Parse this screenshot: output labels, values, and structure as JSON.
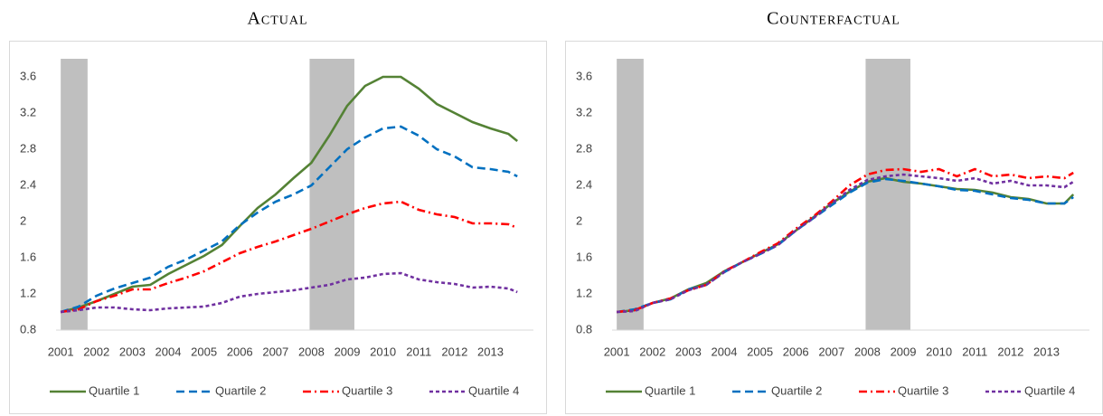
{
  "chart_data": [
    {
      "type": "line",
      "title": "Actual",
      "x": [
        2001,
        2001.5,
        2002,
        2002.5,
        2003,
        2003.5,
        2004,
        2004.5,
        2005,
        2005.5,
        2006,
        2006.5,
        2007,
        2007.5,
        2008,
        2008.5,
        2009,
        2009.5,
        2010,
        2010.5,
        2011,
        2011.5,
        2012,
        2012.5,
        2013,
        2013.5,
        2013.75
      ],
      "xlim": [
        2000.87,
        2014.2
      ],
      "xticks": [
        2001,
        2002,
        2003,
        2004,
        2005,
        2006,
        2007,
        2008,
        2009,
        2010,
        2011,
        2012,
        2013
      ],
      "ylim": [
        0.8,
        3.8
      ],
      "yticks": [
        0.8,
        1.2,
        1.6,
        2,
        2.4,
        2.8,
        3.2,
        3.6
      ],
      "recessions": [
        [
          2001,
          2001.75
        ],
        [
          2007.95,
          2009.2
        ]
      ],
      "recession_color": "#bfbfbf",
      "legend": "bottom",
      "series": [
        {
          "name": "Quartile 1",
          "color": "#548235",
          "style": "solid",
          "values": [
            1.0,
            1.05,
            1.12,
            1.2,
            1.28,
            1.3,
            1.42,
            1.52,
            1.62,
            1.74,
            1.95,
            2.15,
            2.3,
            2.48,
            2.65,
            2.95,
            3.28,
            3.5,
            3.6,
            3.6,
            3.47,
            3.3,
            3.2,
            3.1,
            3.03,
            2.97,
            2.89
          ]
        },
        {
          "name": "Quartile 2",
          "color": "#0070c0",
          "style": "dash",
          "values": [
            1.0,
            1.06,
            1.18,
            1.26,
            1.32,
            1.38,
            1.5,
            1.58,
            1.68,
            1.78,
            1.96,
            2.1,
            2.22,
            2.3,
            2.4,
            2.6,
            2.8,
            2.93,
            3.03,
            3.05,
            2.95,
            2.8,
            2.72,
            2.6,
            2.58,
            2.55,
            2.5
          ]
        },
        {
          "name": "Quartile 3",
          "color": "#ff0000",
          "style": "dashdot",
          "values": [
            1.0,
            1.03,
            1.12,
            1.18,
            1.25,
            1.25,
            1.32,
            1.38,
            1.45,
            1.55,
            1.65,
            1.72,
            1.78,
            1.85,
            1.92,
            2.0,
            2.08,
            2.15,
            2.2,
            2.22,
            2.13,
            2.08,
            2.05,
            1.98,
            1.98,
            1.97,
            1.93
          ]
        },
        {
          "name": "Quartile 4",
          "color": "#7030a0",
          "style": "shortdash",
          "values": [
            1.0,
            1.02,
            1.05,
            1.05,
            1.03,
            1.02,
            1.04,
            1.05,
            1.06,
            1.1,
            1.17,
            1.2,
            1.22,
            1.24,
            1.27,
            1.3,
            1.36,
            1.38,
            1.42,
            1.43,
            1.36,
            1.33,
            1.31,
            1.27,
            1.28,
            1.26,
            1.22
          ]
        }
      ]
    },
    {
      "type": "line",
      "title": "Counterfactual",
      "x": [
        2001,
        2001.5,
        2002,
        2002.5,
        2003,
        2003.5,
        2004,
        2004.5,
        2005,
        2005.5,
        2006,
        2006.5,
        2007,
        2007.5,
        2008,
        2008.5,
        2009,
        2009.5,
        2010,
        2010.5,
        2011,
        2011.5,
        2012,
        2012.5,
        2013,
        2013.5,
        2013.75
      ],
      "xlim": [
        2000.87,
        2014.2
      ],
      "xticks": [
        2001,
        2002,
        2003,
        2004,
        2005,
        2006,
        2007,
        2008,
        2009,
        2010,
        2011,
        2012,
        2013
      ],
      "ylim": [
        0.8,
        3.8
      ],
      "yticks": [
        0.8,
        1.2,
        1.6,
        2,
        2.4,
        2.8,
        3.2,
        3.6
      ],
      "recessions": [
        [
          2001,
          2001.75
        ],
        [
          2007.95,
          2009.2
        ]
      ],
      "recession_color": "#bfbfbf",
      "legend": "bottom",
      "series": [
        {
          "name": "Quartile 1",
          "color": "#548235",
          "style": "solid",
          "values": [
            1.0,
            1.02,
            1.1,
            1.15,
            1.25,
            1.32,
            1.45,
            1.55,
            1.65,
            1.75,
            1.9,
            2.05,
            2.2,
            2.33,
            2.44,
            2.48,
            2.44,
            2.42,
            2.39,
            2.36,
            2.35,
            2.32,
            2.27,
            2.25,
            2.2,
            2.2,
            2.3
          ]
        },
        {
          "name": "Quartile 2",
          "color": "#0070c0",
          "style": "dash",
          "values": [
            1.0,
            1.03,
            1.1,
            1.14,
            1.25,
            1.3,
            1.44,
            1.55,
            1.64,
            1.74,
            1.9,
            2.04,
            2.18,
            2.32,
            2.43,
            2.47,
            2.45,
            2.42,
            2.39,
            2.35,
            2.34,
            2.3,
            2.26,
            2.24,
            2.2,
            2.2,
            2.27
          ]
        },
        {
          "name": "Quartile 3",
          "color": "#ff0000",
          "style": "dashdot",
          "values": [
            1.0,
            1.02,
            1.1,
            1.15,
            1.24,
            1.3,
            1.45,
            1.55,
            1.66,
            1.76,
            1.92,
            2.06,
            2.22,
            2.4,
            2.52,
            2.57,
            2.58,
            2.55,
            2.58,
            2.5,
            2.58,
            2.5,
            2.52,
            2.48,
            2.5,
            2.48,
            2.54
          ]
        },
        {
          "name": "Quartile 4",
          "color": "#7030a0",
          "style": "shortdash",
          "values": [
            1.0,
            1.01,
            1.1,
            1.14,
            1.24,
            1.3,
            1.44,
            1.55,
            1.64,
            1.74,
            1.9,
            2.04,
            2.2,
            2.35,
            2.46,
            2.5,
            2.52,
            2.5,
            2.48,
            2.45,
            2.48,
            2.42,
            2.45,
            2.4,
            2.4,
            2.38,
            2.44
          ]
        }
      ]
    }
  ]
}
